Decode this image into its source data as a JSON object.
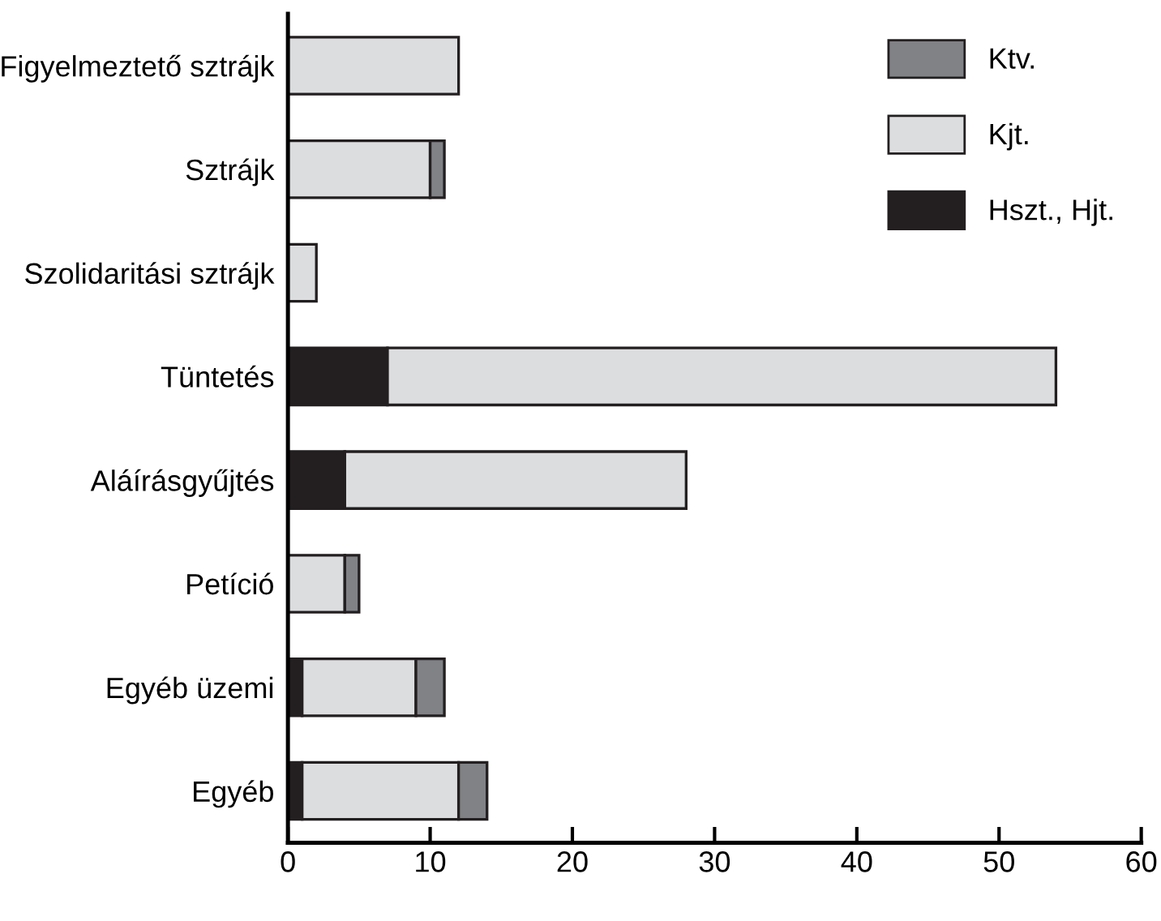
{
  "chart_data": {
    "type": "bar",
    "orientation": "horizontal",
    "stacked": true,
    "categories": [
      "Figyelmeztető sztrájk",
      "Sztrájk",
      "Szolidaritási sztrájk",
      "Tüntetés",
      "Aláírásgyűjtés",
      "Petíció",
      "Egyéb üzemi",
      "Egyéb"
    ],
    "series": [
      {
        "name": "Hszt., Hjt.",
        "color": "#231f20",
        "values": [
          0,
          0,
          0,
          7,
          4,
          0,
          1,
          1
        ]
      },
      {
        "name": "Kjt.",
        "color": "#dcdddf",
        "values": [
          12,
          10,
          2,
          47,
          24,
          4,
          8,
          11
        ]
      },
      {
        "name": "Ktv.",
        "color": "#808285",
        "values": [
          0,
          1,
          0,
          0,
          0,
          1,
          2,
          2
        ]
      }
    ],
    "xlim": [
      0,
      60
    ],
    "xticks": [
      0,
      10,
      20,
      30,
      40,
      50,
      60
    ],
    "grid": false,
    "legend": "top right"
  }
}
